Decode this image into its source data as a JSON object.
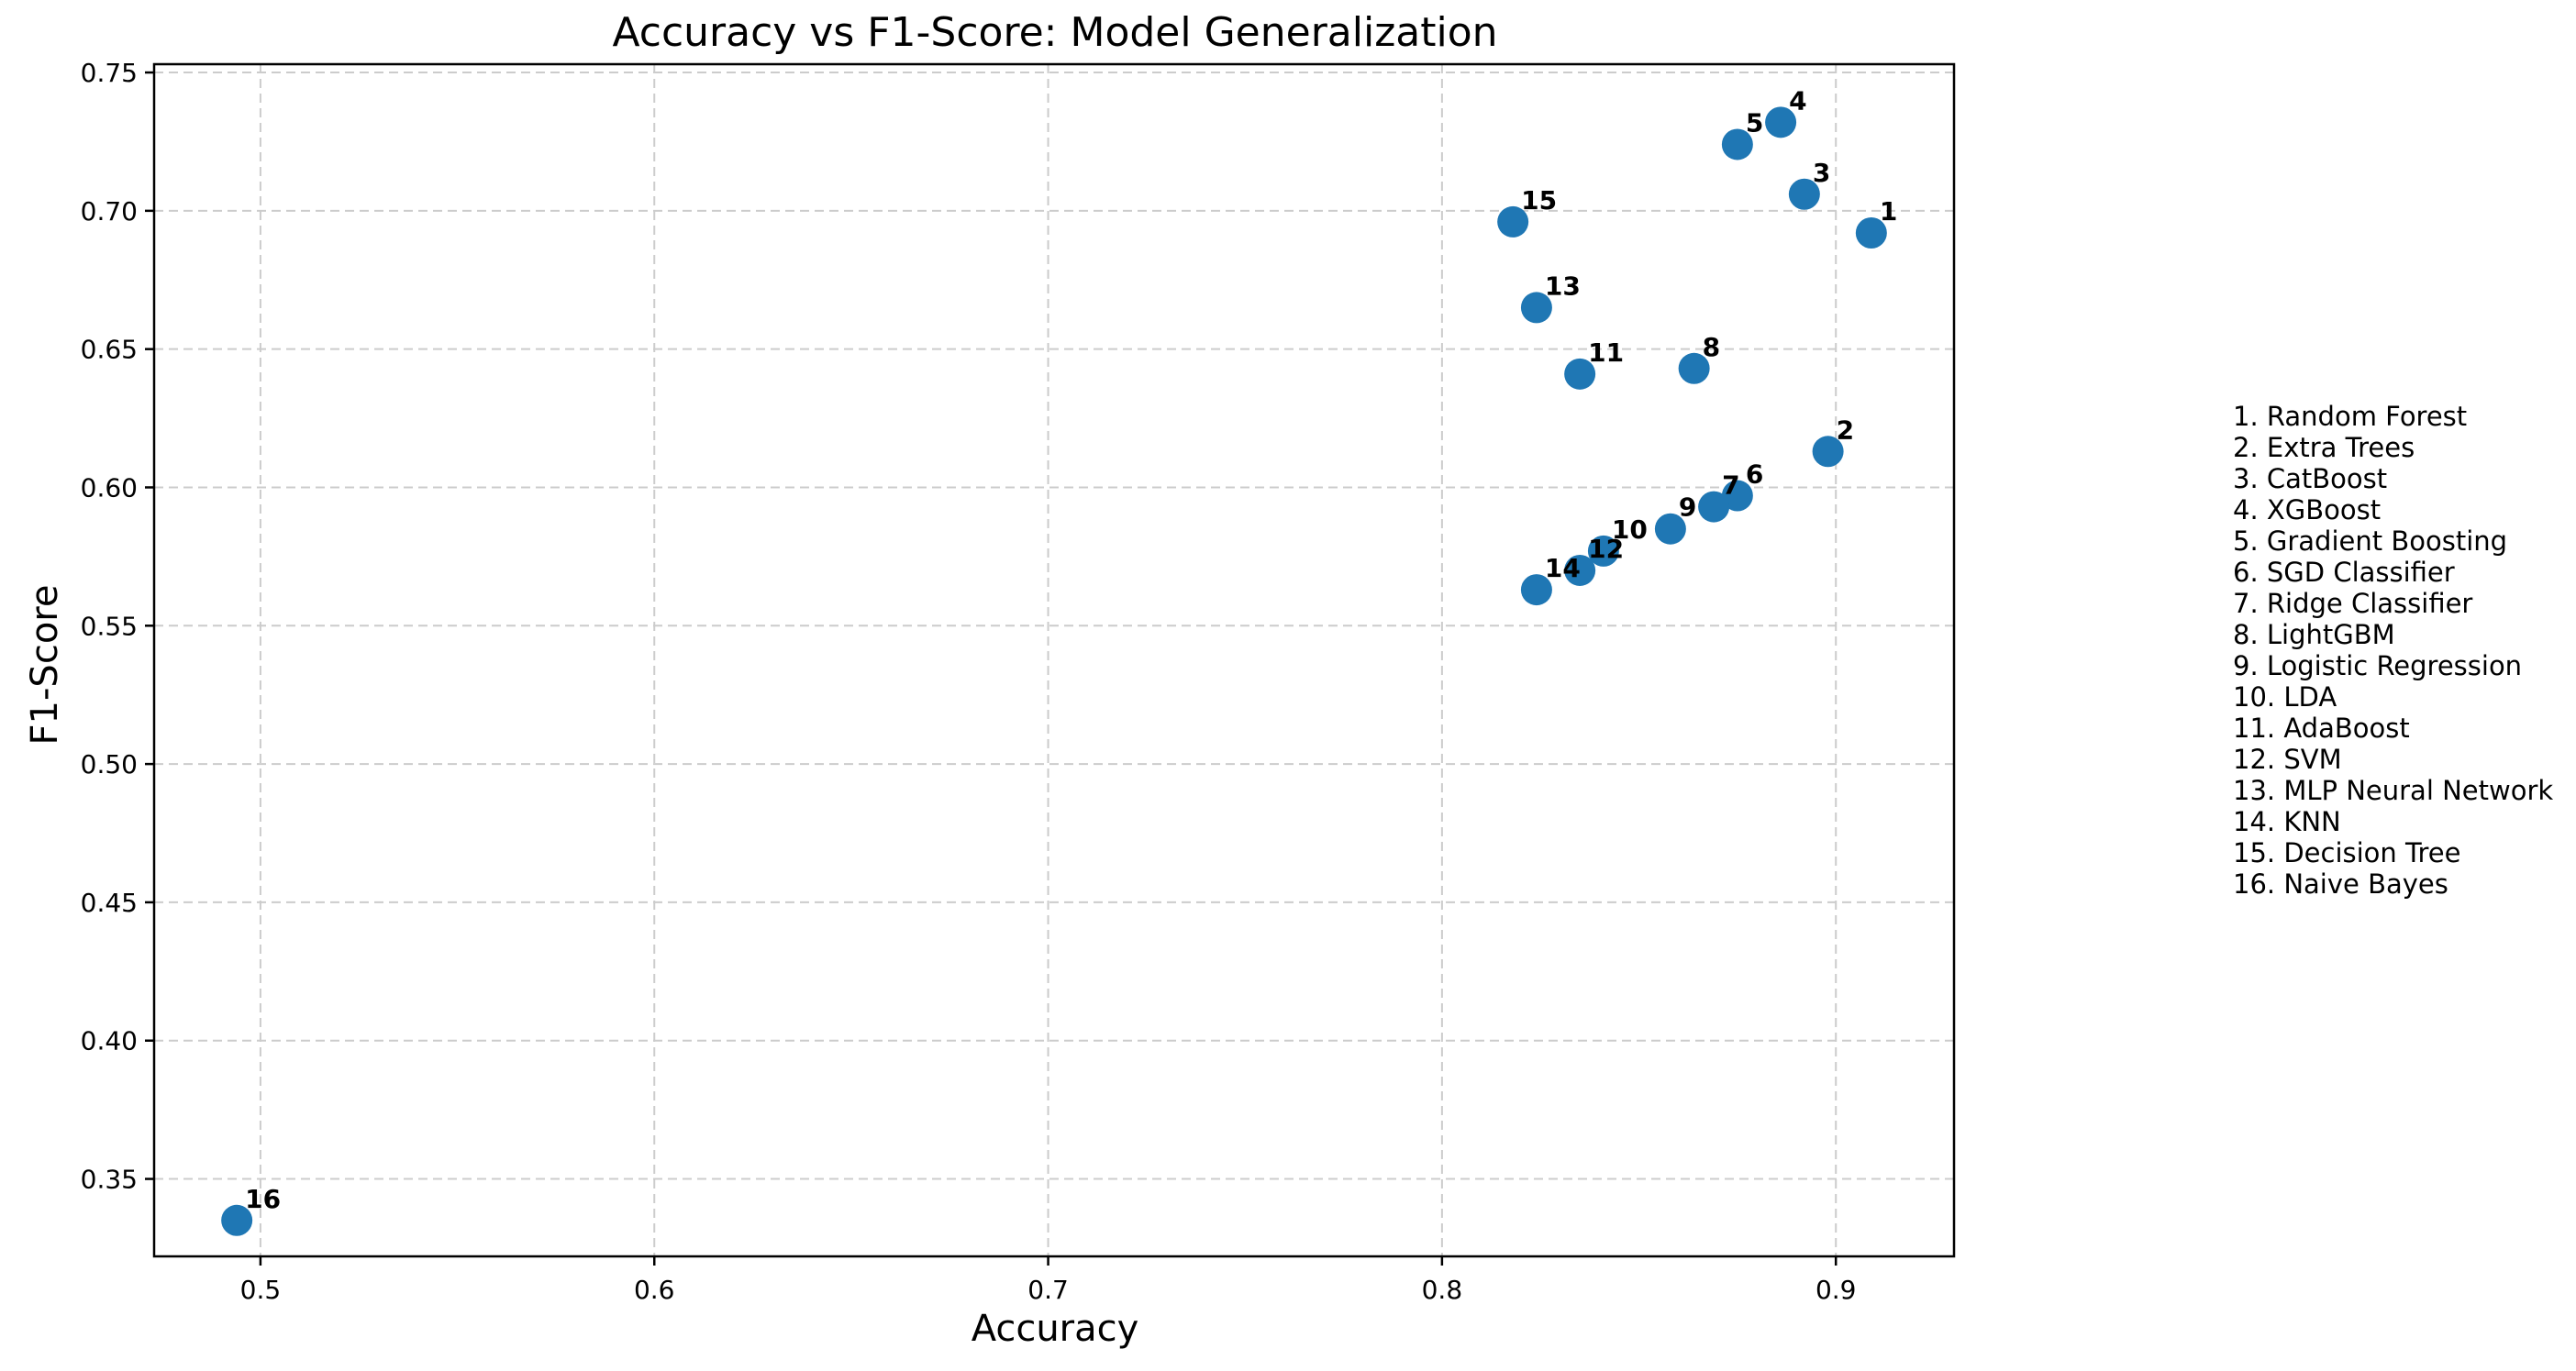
{
  "chart_data": {
    "type": "scatter",
    "title": "Accuracy vs F1-Score: Model Generalization",
    "xlabel": "Accuracy",
    "ylabel": "F1-Score",
    "xlim": [
      0.473,
      0.93
    ],
    "ylim": [
      0.322,
      0.753
    ],
    "xticks": [
      "0.5",
      "0.6",
      "0.7",
      "0.8",
      "0.9"
    ],
    "yticks": [
      "0.35",
      "0.40",
      "0.45",
      "0.50",
      "0.55",
      "0.60",
      "0.65",
      "0.70",
      "0.75"
    ],
    "grid": true,
    "color": "#1f77b4",
    "points": [
      {
        "label": "1",
        "x": 0.909,
        "y": 0.692
      },
      {
        "label": "2",
        "x": 0.898,
        "y": 0.613
      },
      {
        "label": "3",
        "x": 0.892,
        "y": 0.706
      },
      {
        "label": "4",
        "x": 0.886,
        "y": 0.732
      },
      {
        "label": "5",
        "x": 0.875,
        "y": 0.724
      },
      {
        "label": "6",
        "x": 0.875,
        "y": 0.597
      },
      {
        "label": "7",
        "x": 0.869,
        "y": 0.593
      },
      {
        "label": "8",
        "x": 0.864,
        "y": 0.643
      },
      {
        "label": "9",
        "x": 0.858,
        "y": 0.585
      },
      {
        "label": "10",
        "x": 0.841,
        "y": 0.577
      },
      {
        "label": "11",
        "x": 0.835,
        "y": 0.641
      },
      {
        "label": "12",
        "x": 0.835,
        "y": 0.57
      },
      {
        "label": "13",
        "x": 0.824,
        "y": 0.665
      },
      {
        "label": "14",
        "x": 0.824,
        "y": 0.563
      },
      {
        "label": "15",
        "x": 0.818,
        "y": 0.696
      },
      {
        "label": "16",
        "x": 0.494,
        "y": 0.335
      }
    ],
    "legend_position": "right",
    "legend": [
      "1. Random Forest",
      "2. Extra Trees",
      "3. CatBoost",
      "4. XGBoost",
      "5. Gradient Boosting",
      "6. SGD Classifier",
      "7. Ridge Classifier",
      "8. LightGBM",
      "9. Logistic Regression",
      "10. LDA",
      "11. AdaBoost",
      "12. SVM",
      "13. MLP Neural Network",
      "14. KNN",
      "15. Decision Tree",
      "16. Naive Bayes"
    ]
  }
}
